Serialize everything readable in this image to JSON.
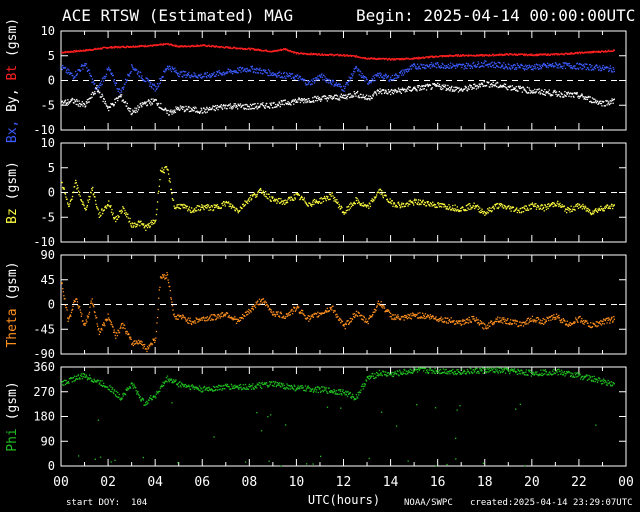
{
  "header": {
    "title": "ACE RTSW (Estimated) MAG",
    "begin": "Begin: 2025-04-14 00:00:00UTC"
  },
  "footer": {
    "start_doy": "start DOY:  104",
    "source": "NOAA/SWPC",
    "created": "created:2025-04-14 23:29:07UTC"
  },
  "colors": {
    "bt": "#ff2020",
    "bx": "#3b5bff",
    "by": "#ffffff",
    "bz": "#ffff40",
    "theta": "#ff9020",
    "phi": "#20c020"
  },
  "chart_data": [
    {
      "type": "scatter",
      "panel": "B",
      "ylabel_parts": [
        {
          "text": "Bx,",
          "color": "#3b5bff"
        },
        {
          "text": "By,",
          "color": "#ffffff"
        },
        {
          "text": "Bt",
          "color": "#ff2020"
        },
        {
          "text": "(gsm)",
          "color": "#ffffff"
        }
      ],
      "ylim": [
        -10,
        10
      ],
      "yticks": [
        10,
        5,
        0,
        -5,
        -10
      ],
      "zero_line": true,
      "series": [
        {
          "key": "bt",
          "x": [
            0,
            1,
            2,
            3,
            4,
            4.5,
            5,
            6,
            7,
            8,
            9,
            9.5,
            10,
            11,
            12,
            12.5,
            13,
            14,
            15,
            16,
            17,
            18,
            19,
            20,
            21,
            22,
            23,
            23.5
          ],
          "y": [
            5.8,
            6.2,
            6.8,
            7.0,
            7.2,
            7.5,
            7.0,
            7.2,
            6.8,
            6.5,
            6.0,
            6.5,
            5.6,
            5.4,
            5.2,
            5.0,
            4.6,
            4.4,
            4.6,
            5.0,
            5.2,
            5.2,
            5.4,
            5.3,
            5.4,
            5.7,
            6.0,
            6.2
          ]
        },
        {
          "key": "bx",
          "x": [
            0,
            0.5,
            1,
            1.5,
            2,
            2.5,
            3,
            3.5,
            4,
            4.5,
            5,
            6,
            7,
            8,
            9,
            10,
            10.5,
            11,
            12,
            12.5,
            13,
            13.5,
            14,
            15,
            16,
            17,
            18,
            19,
            20,
            21,
            22,
            23,
            23.5
          ],
          "y": [
            2.8,
            1.0,
            3.5,
            -2.0,
            2.5,
            -2.5,
            3.0,
            0.5,
            -1.5,
            3.0,
            1.5,
            1.0,
            1.8,
            2.5,
            1.5,
            0.8,
            -0.5,
            1.0,
            -1.5,
            2.5,
            -0.2,
            1.2,
            0.5,
            3.0,
            3.2,
            3.0,
            3.5,
            3.0,
            2.8,
            3.2,
            3.0,
            2.6,
            2.4
          ]
        },
        {
          "key": "by",
          "x": [
            0,
            0.5,
            1,
            1.5,
            2,
            2.5,
            3,
            3.5,
            4,
            4.5,
            5,
            6,
            7,
            8,
            9,
            10,
            11,
            12,
            12.5,
            13,
            13.5,
            14,
            15,
            16,
            17,
            18,
            19,
            20,
            21,
            22,
            23,
            23.5
          ],
          "y": [
            -4.5,
            -4.0,
            -5.0,
            -1.5,
            -5.5,
            -3.0,
            -6.5,
            -4.5,
            -4.0,
            -6.5,
            -5.5,
            -6.0,
            -5.0,
            -5.2,
            -4.8,
            -4.0,
            -3.5,
            -3.2,
            -2.5,
            -3.5,
            -2.0,
            -2.2,
            -1.5,
            -1.0,
            -1.8,
            -0.5,
            -1.2,
            -2.0,
            -2.5,
            -3.0,
            -4.5,
            -4.0
          ]
        }
      ]
    },
    {
      "type": "scatter",
      "panel": "Bz",
      "ylabel_parts": [
        {
          "text": "Bz",
          "color": "#ffff40"
        },
        {
          "text": "(gsm)",
          "color": "#ffffff"
        }
      ],
      "ylim": [
        -10,
        10
      ],
      "yticks": [
        10,
        5,
        0,
        -5,
        -10
      ],
      "zero_line": true,
      "series": [
        {
          "key": "bz",
          "x": [
            0,
            0.3,
            0.6,
            1,
            1.3,
            1.6,
            2,
            2.3,
            2.6,
            3,
            3.3,
            3.6,
            4,
            4.2,
            4.5,
            4.8,
            5,
            5.5,
            6,
            6.5,
            7,
            7.5,
            8,
            8.5,
            9,
            9.5,
            10,
            10.5,
            11,
            11.5,
            12,
            12.5,
            13,
            13.5,
            14,
            14.5,
            15,
            15.5,
            16,
            16.5,
            17,
            17.5,
            18,
            18.5,
            19,
            19.5,
            20,
            20.5,
            21,
            21.5,
            22,
            22.5,
            23,
            23.5
          ],
          "y": [
            2.5,
            -3.0,
            2.0,
            -3.5,
            1.0,
            -4.5,
            -2.0,
            -5.5,
            -3.0,
            -6.5,
            -6.0,
            -7.0,
            -5.5,
            4.5,
            4.8,
            -3.0,
            -2.5,
            -3.5,
            -2.8,
            -3.0,
            -2.0,
            -3.5,
            -1.0,
            0.5,
            -1.5,
            -1.8,
            -0.5,
            -2.2,
            -1.5,
            -0.5,
            -4.0,
            -1.5,
            -3.0,
            0.5,
            -2.0,
            -2.5,
            -1.8,
            -2.0,
            -2.5,
            -2.8,
            -3.2,
            -2.5,
            -4.0,
            -2.5,
            -3.0,
            -3.5,
            -2.5,
            -3.0,
            -2.0,
            -3.5,
            -2.5,
            -3.8,
            -3.0,
            -2.5
          ]
        }
      ]
    },
    {
      "type": "scatter",
      "panel": "Theta",
      "ylabel_parts": [
        {
          "text": "Theta",
          "color": "#ff9020"
        },
        {
          "text": "(gsm)",
          "color": "#ffffff"
        }
      ],
      "ylim": [
        -90,
        90
      ],
      "yticks": [
        90,
        45,
        0,
        -45,
        -90
      ],
      "zero_line": true,
      "series": [
        {
          "key": "theta",
          "x": [
            0,
            0.3,
            0.6,
            1,
            1.3,
            1.6,
            2,
            2.3,
            2.6,
            3,
            3.3,
            3.6,
            4,
            4.2,
            4.5,
            4.8,
            5,
            5.5,
            6,
            6.5,
            7,
            7.5,
            8,
            8.5,
            9,
            9.5,
            10,
            10.5,
            11,
            11.5,
            12,
            12.5,
            13,
            13.5,
            14,
            14.5,
            15,
            15.5,
            16,
            16.5,
            17,
            17.5,
            18,
            18.5,
            19,
            19.5,
            20,
            20.5,
            21,
            21.5,
            22,
            22.5,
            23,
            23.5
          ],
          "y": [
            40,
            -30,
            15,
            -40,
            10,
            -50,
            -20,
            -55,
            -35,
            -70,
            -65,
            -80,
            -60,
            50,
            55,
            -25,
            -20,
            -30,
            -25,
            -22,
            -15,
            -30,
            -10,
            10,
            -15,
            -20,
            -5,
            -25,
            -15,
            -5,
            -40,
            -15,
            -30,
            5,
            -20,
            -25,
            -18,
            -20,
            -25,
            -28,
            -32,
            -25,
            -40,
            -25,
            -30,
            -35,
            -25,
            -30,
            -20,
            -35,
            -25,
            -38,
            -30,
            -25
          ]
        }
      ]
    },
    {
      "type": "scatter",
      "panel": "Phi",
      "ylabel_parts": [
        {
          "text": "Phi",
          "color": "#20c020"
        },
        {
          "text": "(gsm)",
          "color": "#ffffff"
        }
      ],
      "ylim": [
        0,
        360
      ],
      "yticks": [
        360,
        270,
        180,
        90,
        0
      ],
      "zero_line": false,
      "series": [
        {
          "key": "phi",
          "x": [
            0,
            0.5,
            1,
            1.5,
            2,
            2.5,
            3,
            3.5,
            4,
            4.5,
            5,
            6,
            7,
            8,
            9,
            10,
            11,
            12,
            12.5,
            13,
            13.5,
            14,
            15,
            16,
            17,
            18,
            19,
            20,
            21,
            22,
            23,
            23.5
          ],
          "y": [
            300,
            320,
            330,
            310,
            290,
            250,
            300,
            230,
            260,
            320,
            300,
            280,
            290,
            290,
            300,
            285,
            280,
            270,
            250,
            320,
            340,
            335,
            350,
            348,
            345,
            350,
            348,
            340,
            345,
            330,
            310,
            300
          ]
        }
      ]
    }
  ],
  "x_axis": {
    "label": "UTC(hours)",
    "ticks": [
      "00",
      "02",
      "04",
      "06",
      "08",
      "10",
      "12",
      "14",
      "16",
      "18",
      "20",
      "22",
      "00"
    ],
    "range": [
      0,
      24
    ]
  }
}
